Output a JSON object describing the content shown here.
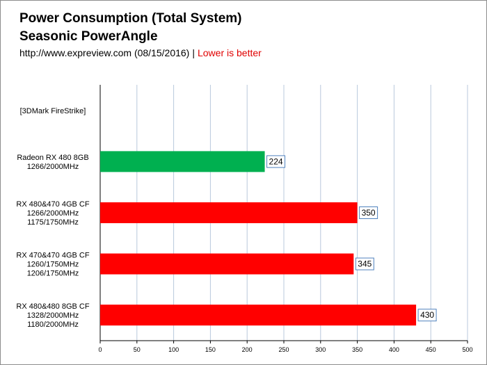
{
  "header": {
    "title_line1": "Power Consumption (Total System)",
    "title_line2": "Seasonic PowerAngle",
    "source": "http://www.expreview.com (08/15/2016)",
    "separator": "|",
    "note": "Lower is better"
  },
  "colors": {
    "green": "#00b050",
    "red": "#ff0000",
    "grid": "#b8c8dc",
    "value_box_border": "#4f81bd",
    "note": "#e00000"
  },
  "chart_data": {
    "type": "bar",
    "orientation": "horizontal",
    "title": "Power Consumption (Total System)",
    "subtitle": "Seasonic PowerAngle",
    "xlabel": "",
    "ylabel": "",
    "xlim": [
      0,
      500
    ],
    "xticks": [
      0,
      50,
      100,
      150,
      200,
      250,
      300,
      350,
      400,
      450,
      500
    ],
    "grid": true,
    "legend": "none",
    "categories": [
      {
        "lines": [
          "[3DMark FireStrike]"
        ],
        "value": null,
        "color": ""
      },
      {
        "lines": [
          "Radeon RX 480 8GB",
          "1266/2000MHz"
        ],
        "value": 224,
        "color": "#00b050"
      },
      {
        "lines": [
          "RX 480&470 4GB CF",
          "1266/2000MHz",
          "1175/1750MHz"
        ],
        "value": 350,
        "color": "#ff0000"
      },
      {
        "lines": [
          "RX 470&470 4GB CF",
          "1260/1750MHz",
          "1206/1750MHz"
        ],
        "value": 345,
        "color": "#ff0000"
      },
      {
        "lines": [
          "RX 480&480 8GB CF",
          "1328/2000MHz",
          "1180/2000MHz"
        ],
        "value": 430,
        "color": "#ff0000"
      }
    ],
    "values": [
      null,
      224,
      350,
      345,
      430
    ],
    "data_labels": [
      "",
      "224",
      "350",
      "345",
      "430"
    ]
  }
}
